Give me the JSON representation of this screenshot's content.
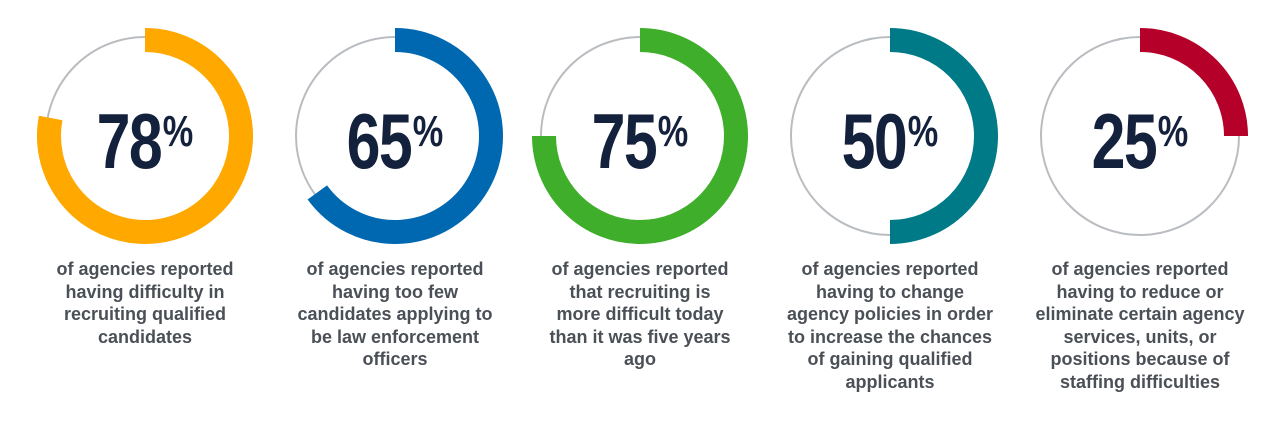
{
  "chart_data": {
    "type": "donut",
    "title": "",
    "items": [
      {
        "value": 78,
        "unit": "%",
        "color": "#ffa800",
        "description": "of agencies reported having difficulty in recruiting qualified candidates"
      },
      {
        "value": 65,
        "unit": "%",
        "color": "#0067b1",
        "description": "of agencies reported having too few candidates applying to be law enforcement officers"
      },
      {
        "value": 75,
        "unit": "%",
        "color": "#3fae2a",
        "description": "of agencies reported that recruiting is more difficult today than it was five years ago"
      },
      {
        "value": 50,
        "unit": "%",
        "color": "#007a87",
        "description": "of agencies reported having to change agency policies in order to increase the chances of gaining qualified applicants"
      },
      {
        "value": 25,
        "unit": "%",
        "color": "#b5002a",
        "description": "of agencies reported having to reduce or eliminate certain agency services, units, or positions because of staffing difficulties"
      }
    ],
    "track_color": "#b9bcc0",
    "number_color": "#14213d"
  }
}
